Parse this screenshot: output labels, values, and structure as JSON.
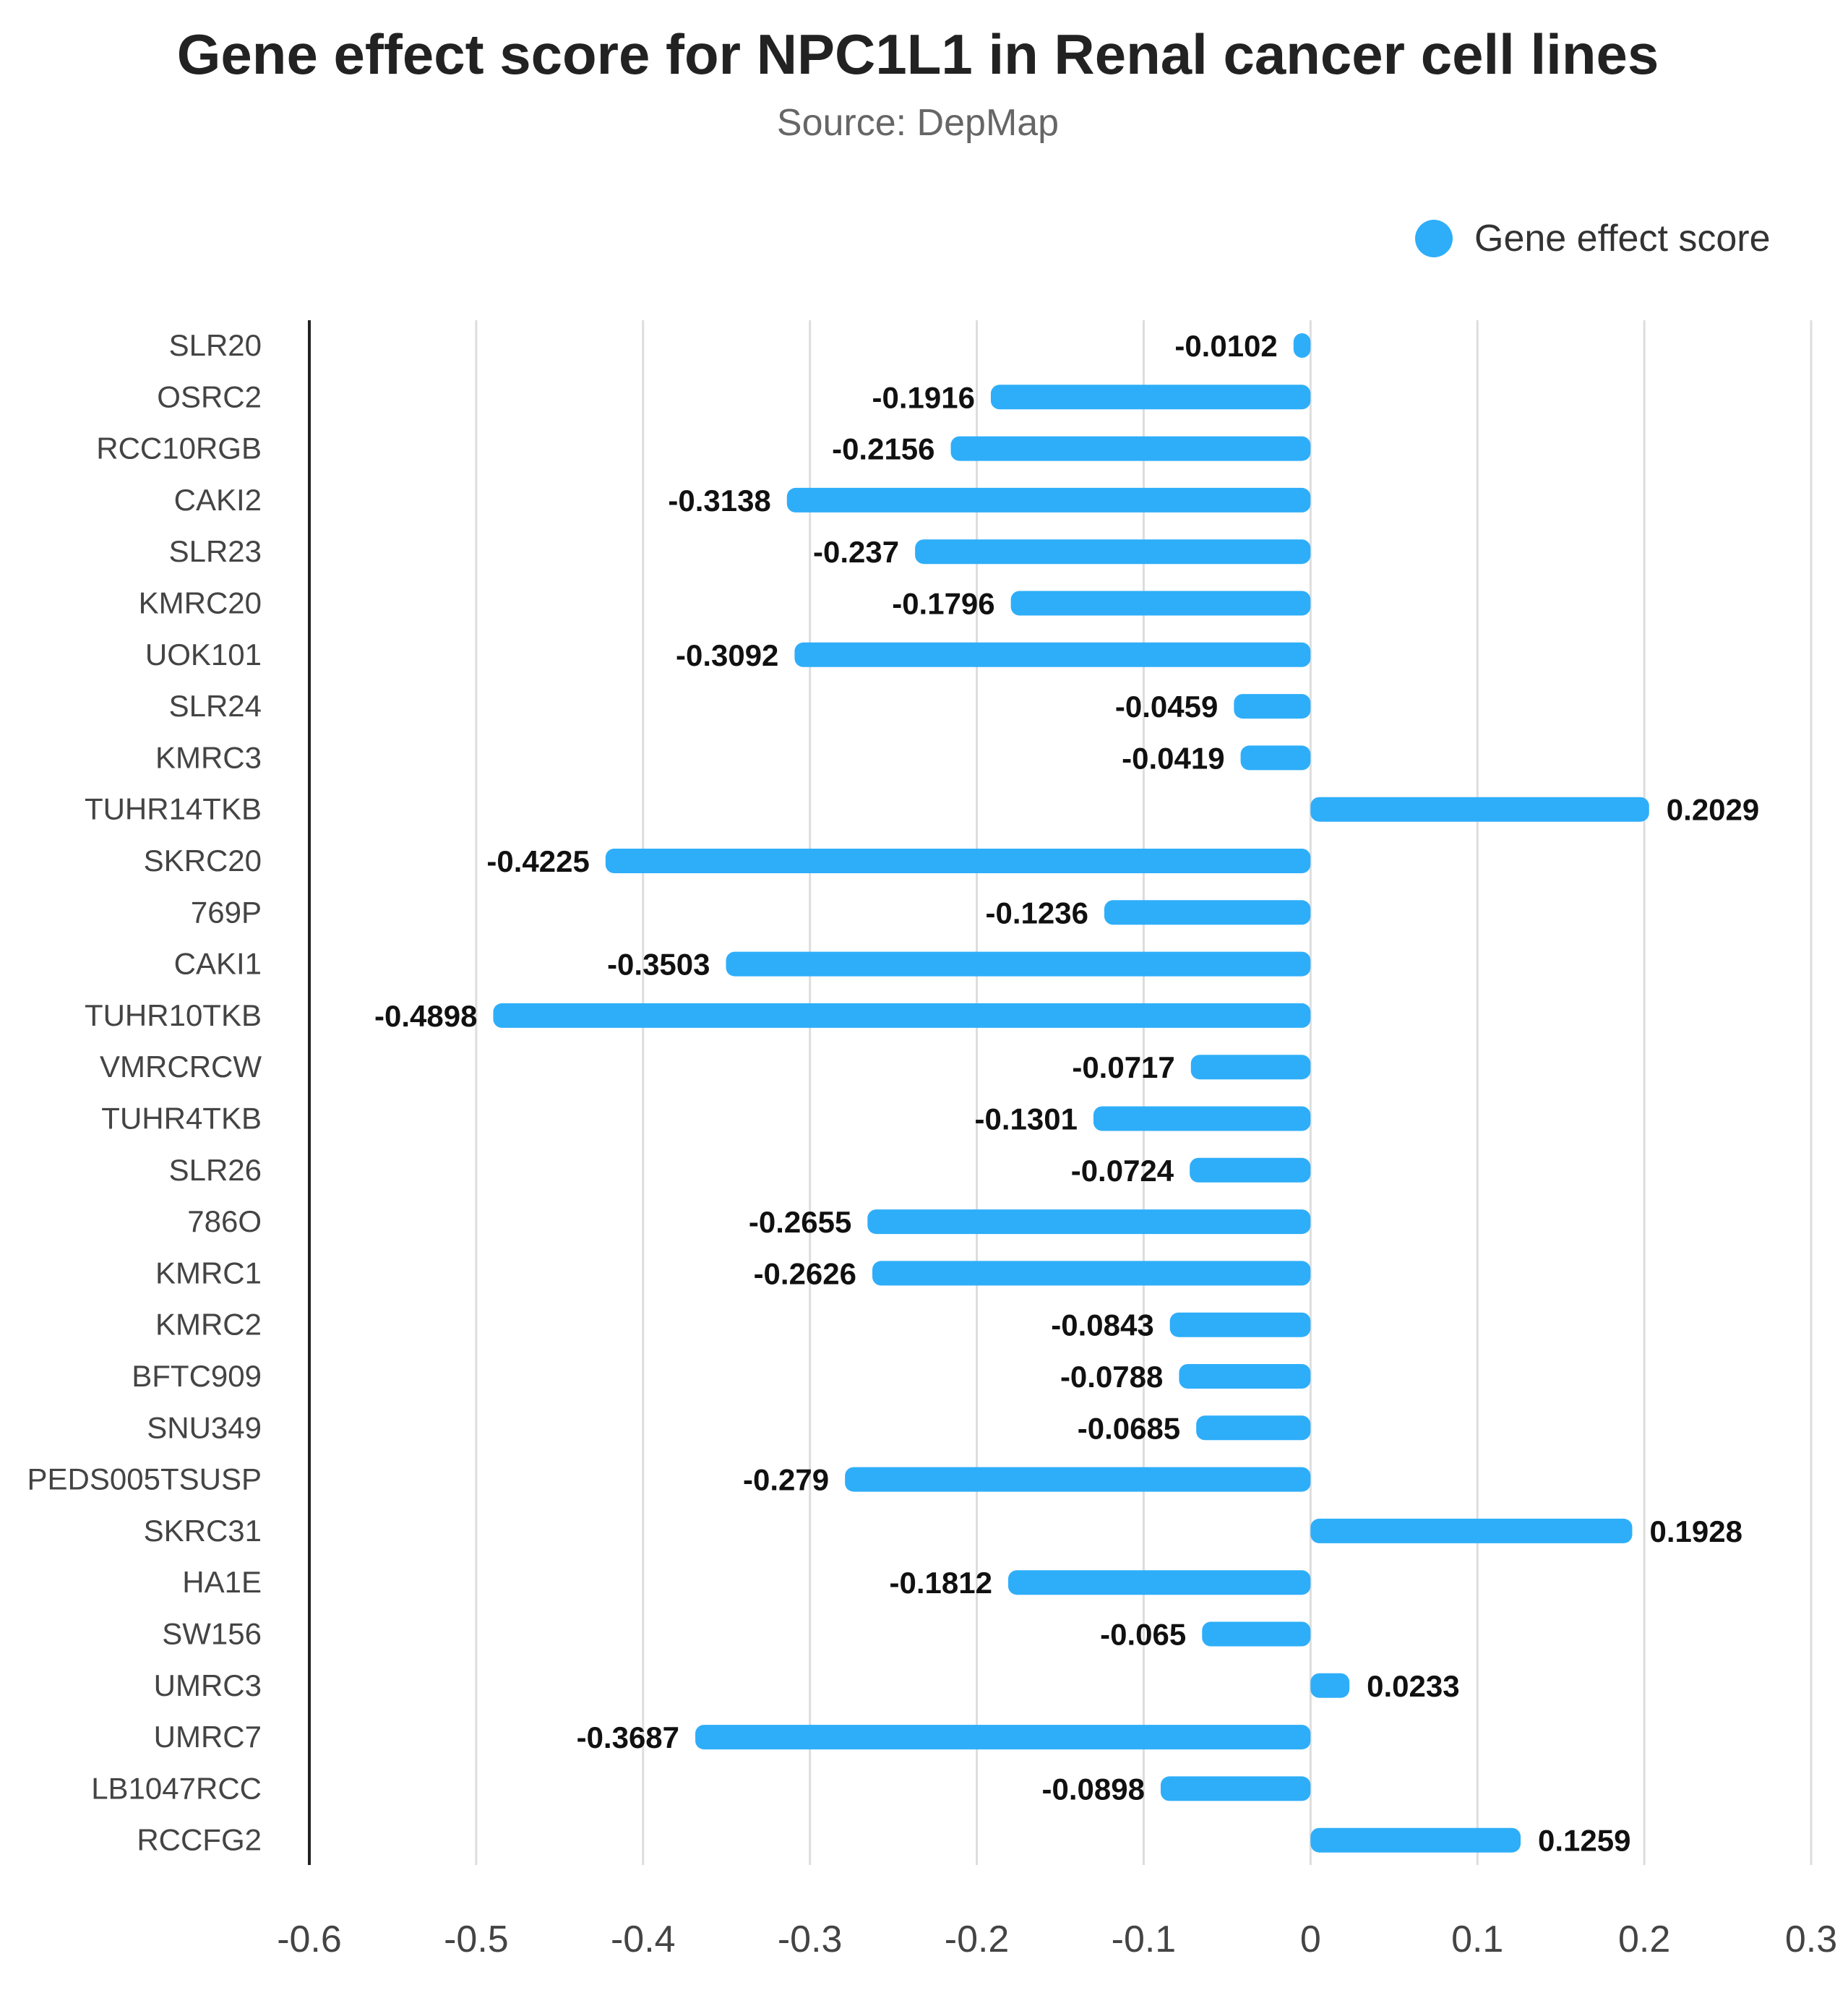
{
  "chart_data": {
    "type": "bar",
    "orientation": "horizontal",
    "title": "Gene effect score for NPC1L1 in Renal cancer cell lines",
    "subtitle": "Source: DepMap",
    "legend": {
      "position": "top-right",
      "entries": [
        "Gene effect score"
      ]
    },
    "bar_color": "#2EAEF9",
    "xlim": [
      -0.6,
      0.3
    ],
    "x_ticks": [
      "-0.6",
      "-0.5",
      "-0.4",
      "-0.3",
      "-0.2",
      "-0.1",
      "0",
      "0.1",
      "0.2",
      "0.3"
    ],
    "grid": true,
    "xlabel": "",
    "ylabel": "",
    "series": [
      {
        "name": "Gene effect score",
        "categories": [
          "SLR20",
          "OSRC2",
          "RCC10RGB",
          "CAKI2",
          "SLR23",
          "KMRC20",
          "UOK101",
          "SLR24",
          "KMRC3",
          "TUHR14TKB",
          "SKRC20",
          "769P",
          "CAKI1",
          "TUHR10TKB",
          "VMRCRCW",
          "TUHR4TKB",
          "SLR26",
          "786O",
          "KMRC1",
          "KMRC2",
          "BFTC909",
          "SNU349",
          "PEDS005TSUSP",
          "SKRC31",
          "HA1E",
          "SW156",
          "UMRC3",
          "UMRC7",
          "LB1047RCC",
          "RCCFG2"
        ],
        "values": [
          -0.0102,
          -0.1916,
          -0.2156,
          -0.3138,
          -0.237,
          -0.1796,
          -0.3092,
          -0.0459,
          -0.0419,
          0.2029,
          -0.4225,
          -0.1236,
          -0.3503,
          -0.4898,
          -0.0717,
          -0.1301,
          -0.0724,
          -0.2655,
          -0.2626,
          -0.0843,
          -0.0788,
          -0.0685,
          -0.279,
          0.1928,
          -0.1812,
          -0.065,
          0.0233,
          -0.3687,
          -0.0898,
          0.1259
        ],
        "value_labels": [
          "-0.0102",
          "-0.1916",
          "-0.2156",
          "-0.3138",
          "-0.237",
          "-0.1796",
          "-0.3092",
          "-0.0459",
          "-0.0419",
          "0.2029",
          "-0.4225",
          "-0.1236",
          "-0.3503",
          "-0.4898",
          "-0.0717",
          "-0.1301",
          "-0.0724",
          "-0.2655",
          "-0.2626",
          "-0.0843",
          "-0.0788",
          "-0.0685",
          "-0.279",
          "0.1928",
          "-0.1812",
          "-0.065",
          "0.0233",
          "-0.3687",
          "-0.0898",
          "0.1259"
        ]
      }
    ]
  }
}
